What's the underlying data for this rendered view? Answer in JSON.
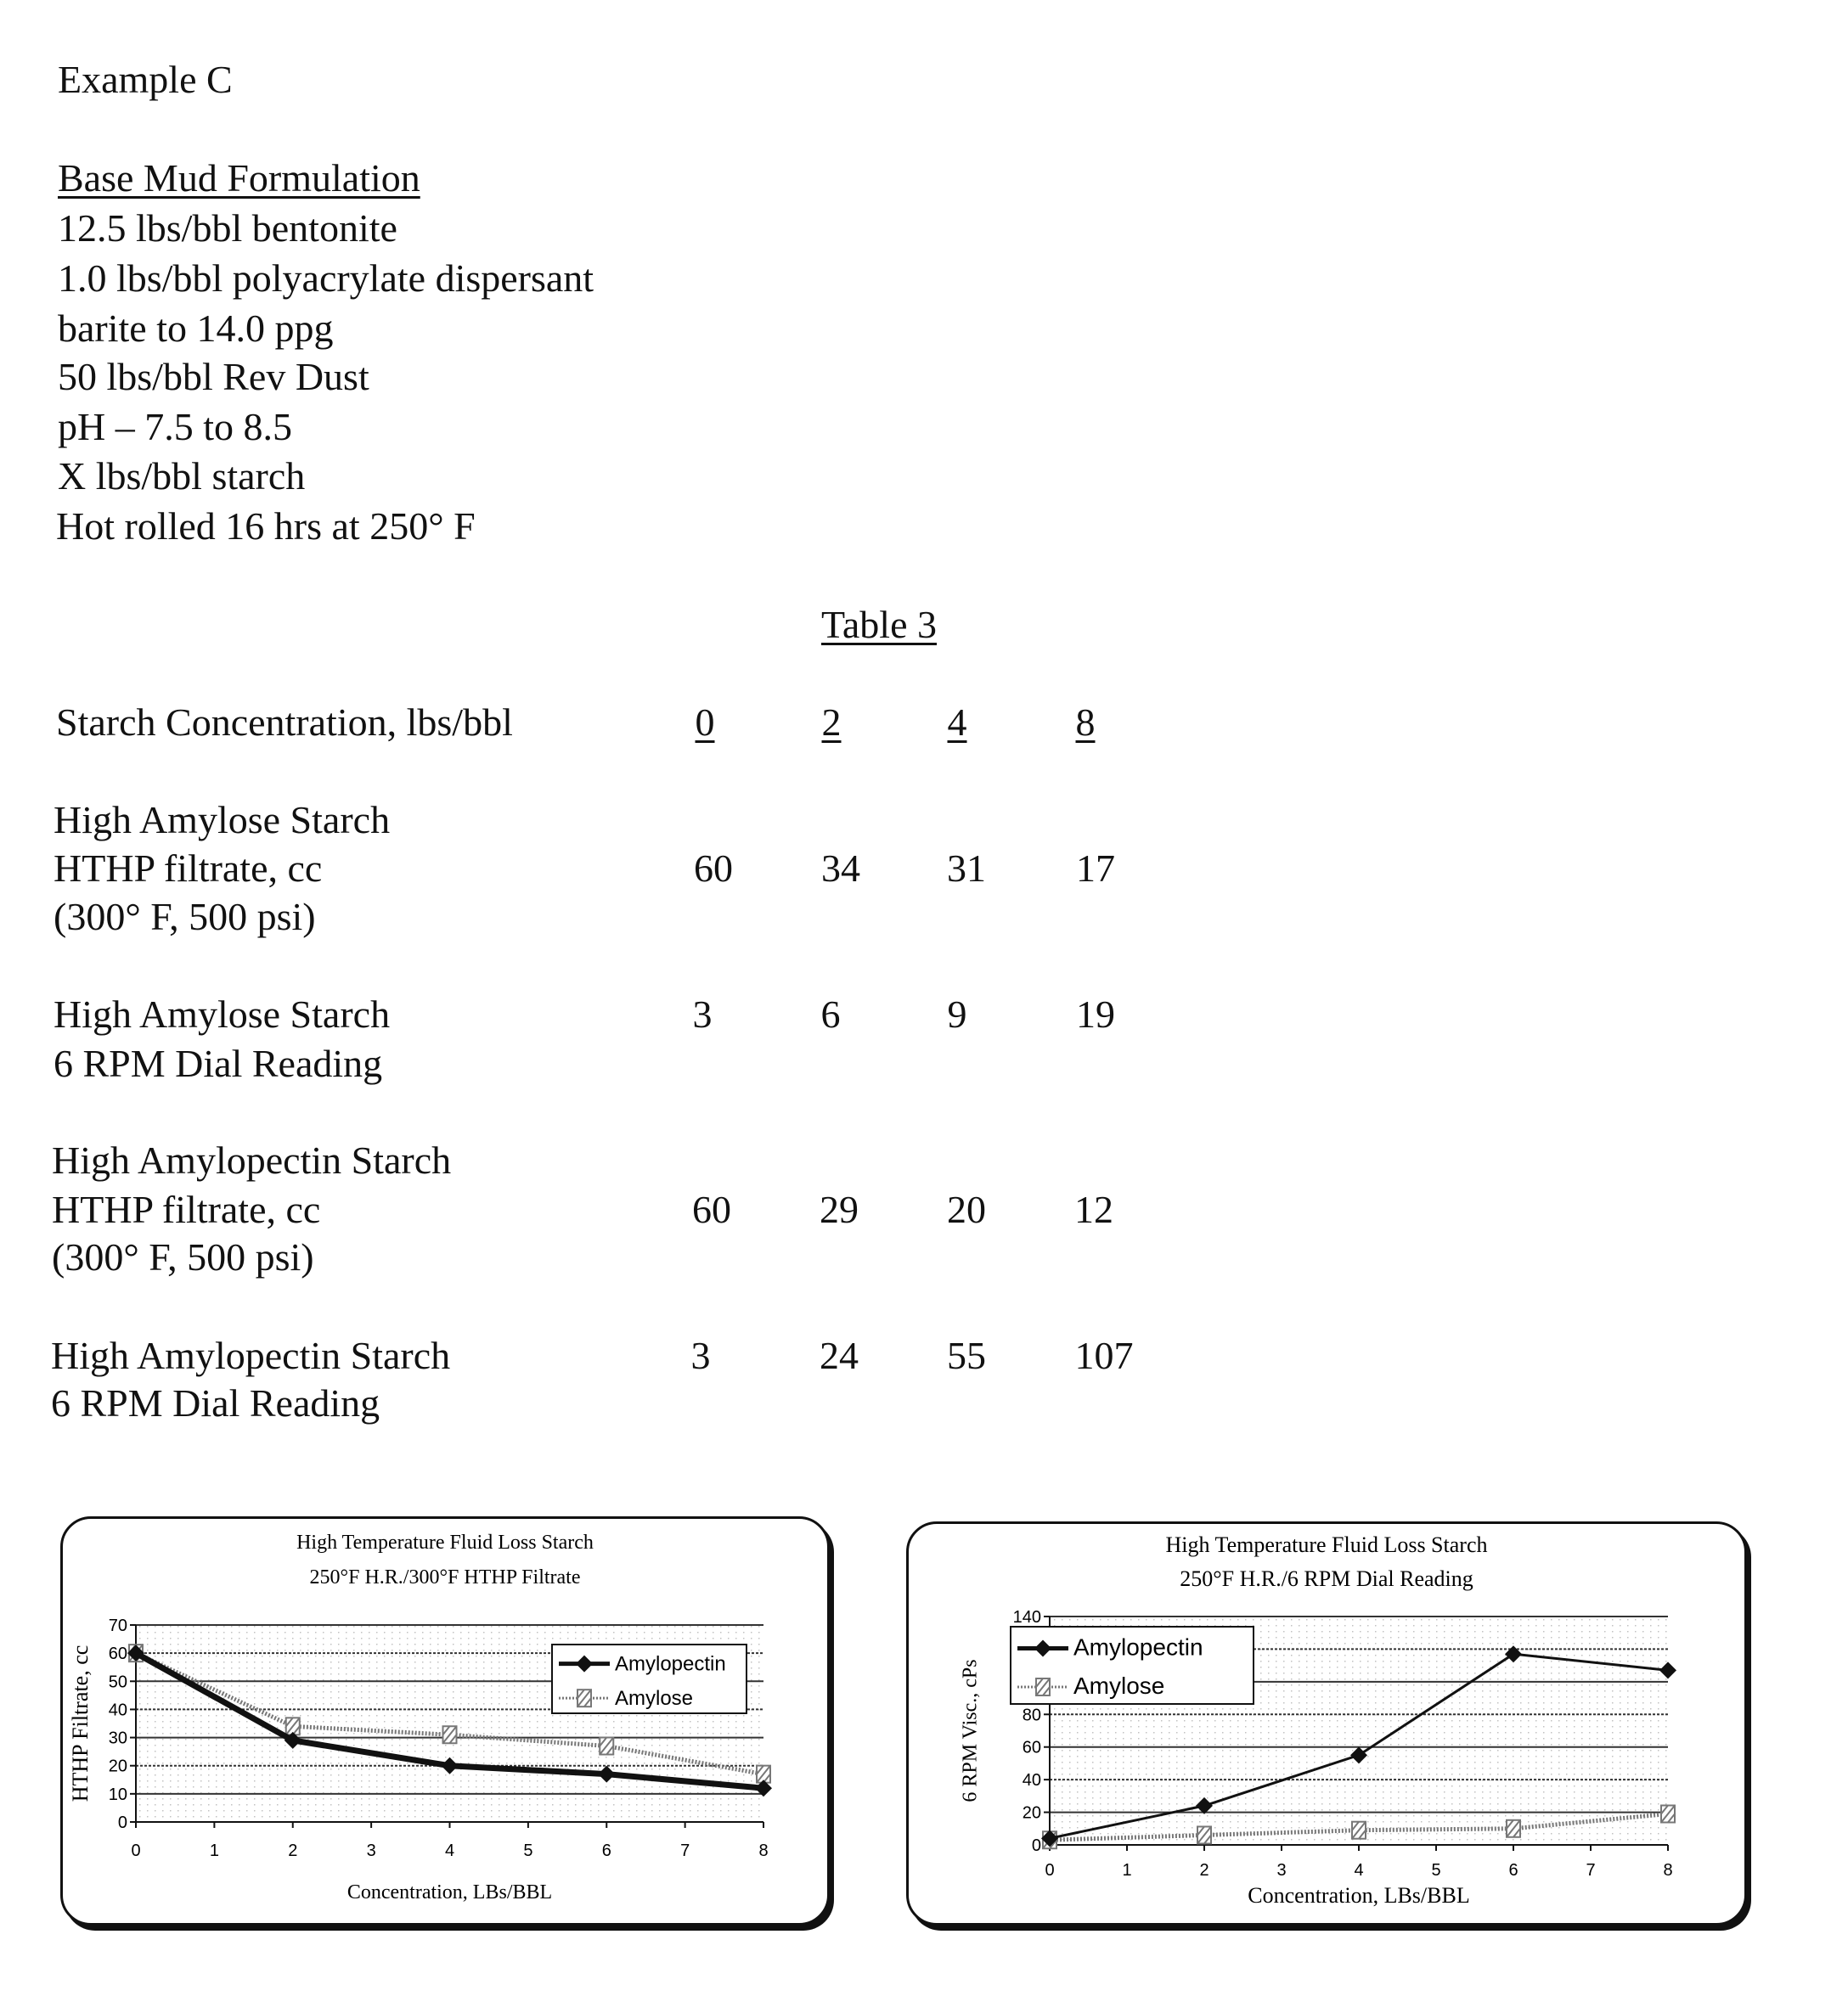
{
  "heading": "Example C",
  "formulation": {
    "title": "Base Mud Formulation",
    "lines": [
      "12.5 lbs/bbl bentonite",
      "1.0 lbs/bbl polyacrylate dispersant",
      "barite to 14.0 ppg",
      "50 lbs/bbl Rev Dust",
      "pH – 7.5 to 8.5",
      "X lbs/bbl  starch",
      "Hot rolled 16 hrs at 250° F"
    ]
  },
  "table": {
    "title": "Table 3",
    "header_label": "Starch Concentration, lbs/bbl",
    "columns": [
      "0",
      "2",
      "4",
      "8"
    ],
    "rows": [
      {
        "label": [
          "High Amylose Starch",
          "HTHP filtrate, cc",
          "(300° F, 500 psi)"
        ],
        "values": [
          "60",
          "34",
          "31",
          "17"
        ]
      },
      {
        "label": [
          "High Amylose Starch",
          "6 RPM Dial Reading"
        ],
        "values": [
          "3",
          "6",
          "9",
          "19"
        ]
      },
      {
        "label": [
          "High Amylopectin Starch",
          "HTHP filtrate, cc",
          "(300° F, 500 psi)"
        ],
        "values": [
          "60",
          "29",
          "20",
          "12"
        ]
      },
      {
        "label": [
          "High Amylopectin Starch",
          "6 RPM Dial Reading"
        ],
        "values": [
          "3",
          "24",
          "55",
          "107"
        ]
      }
    ]
  },
  "chart_data": [
    {
      "type": "line",
      "title": [
        "High Temperature Fluid Loss Starch",
        "250°F H.R./300°F HTHP Filtrate"
      ],
      "xlabel": "Concentration, LBs/BBL",
      "ylabel": "HTHP Filtrate, cc",
      "xlim": [
        0,
        8
      ],
      "ylim": [
        0,
        70
      ],
      "xticks": [
        "0",
        "1",
        "2",
        "3",
        "4",
        "5",
        "6",
        "7",
        "8"
      ],
      "yticks": [
        "0",
        "10",
        "20",
        "30",
        "40",
        "50",
        "60",
        "70"
      ],
      "grid": true,
      "legend": "top-right",
      "x": [
        0,
        2,
        4,
        6,
        8
      ],
      "series": [
        {
          "name": "Amylopectin",
          "values": [
            60,
            29,
            20,
            17,
            12
          ],
          "color": "#111111",
          "marker": "diamond"
        },
        {
          "name": "Amylose",
          "values": [
            60,
            34,
            31,
            27,
            17
          ],
          "color": "#777777",
          "marker": "hatched-square"
        }
      ]
    },
    {
      "type": "line",
      "title": [
        "High Temperature Fluid Loss Starch",
        "250°F H.R./6 RPM Dial Reading"
      ],
      "xlabel": "Concentration, LBs/BBL",
      "ylabel": "6 RPM Visc., cPs",
      "xlim": [
        0,
        8
      ],
      "ylim": [
        0,
        140
      ],
      "xticks": [
        "0",
        "1",
        "2",
        "3",
        "4",
        "5",
        "6",
        "7",
        "8"
      ],
      "yticks": [
        "0",
        "20",
        "40",
        "60",
        "80",
        "100",
        "120",
        "140"
      ],
      "grid": true,
      "legend": "top-left",
      "x": [
        0,
        2,
        4,
        6,
        8
      ],
      "series": [
        {
          "name": "Amylopectin",
          "values": [
            4,
            24,
            55,
            117,
            107
          ],
          "color": "#111111",
          "marker": "diamond"
        },
        {
          "name": "Amylose",
          "values": [
            3,
            6,
            9,
            10,
            19
          ],
          "color": "#777777",
          "marker": "hatched-square"
        }
      ]
    }
  ]
}
